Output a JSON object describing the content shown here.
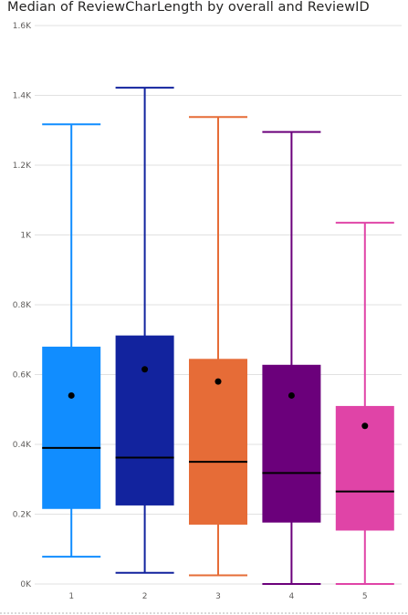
{
  "chart_data": {
    "type": "box",
    "title": "Median of ReviewCharLength by overall and ReviewID",
    "xlabel": "",
    "ylabel": "",
    "ylim": [
      0,
      1600
    ],
    "y_ticks": [
      {
        "value": 0,
        "label": "0K"
      },
      {
        "value": 200,
        "label": "0.2K"
      },
      {
        "value": 400,
        "label": "0.4K"
      },
      {
        "value": 600,
        "label": "0.6K"
      },
      {
        "value": 800,
        "label": "0.8K"
      },
      {
        "value": 1000,
        "label": "1K"
      },
      {
        "value": 1200,
        "label": "1.2K"
      },
      {
        "value": 1400,
        "label": "1.4K"
      },
      {
        "value": 1600,
        "label": "1.6K"
      }
    ],
    "grid": true,
    "boxes": [
      {
        "category": "1",
        "color": "#118DFF",
        "min": 78,
        "q1": 215,
        "median": 390,
        "q3": 680,
        "max": 1317,
        "mean": 540
      },
      {
        "category": "2",
        "color": "#12239E",
        "min": 32,
        "q1": 225,
        "median": 362,
        "q3": 712,
        "max": 1422,
        "mean": 615
      },
      {
        "category": "3",
        "color": "#E66C37",
        "min": 25,
        "q1": 170,
        "median": 350,
        "q3": 645,
        "max": 1338,
        "mean": 580
      },
      {
        "category": "4",
        "color": "#6B007B",
        "min": 0,
        "q1": 176,
        "median": 318,
        "q3": 628,
        "max": 1295,
        "mean": 540
      },
      {
        "category": "5",
        "color": "#E044A7",
        "min": 0,
        "q1": 153,
        "median": 265,
        "q3": 510,
        "max": 1035,
        "mean": 453
      }
    ]
  }
}
